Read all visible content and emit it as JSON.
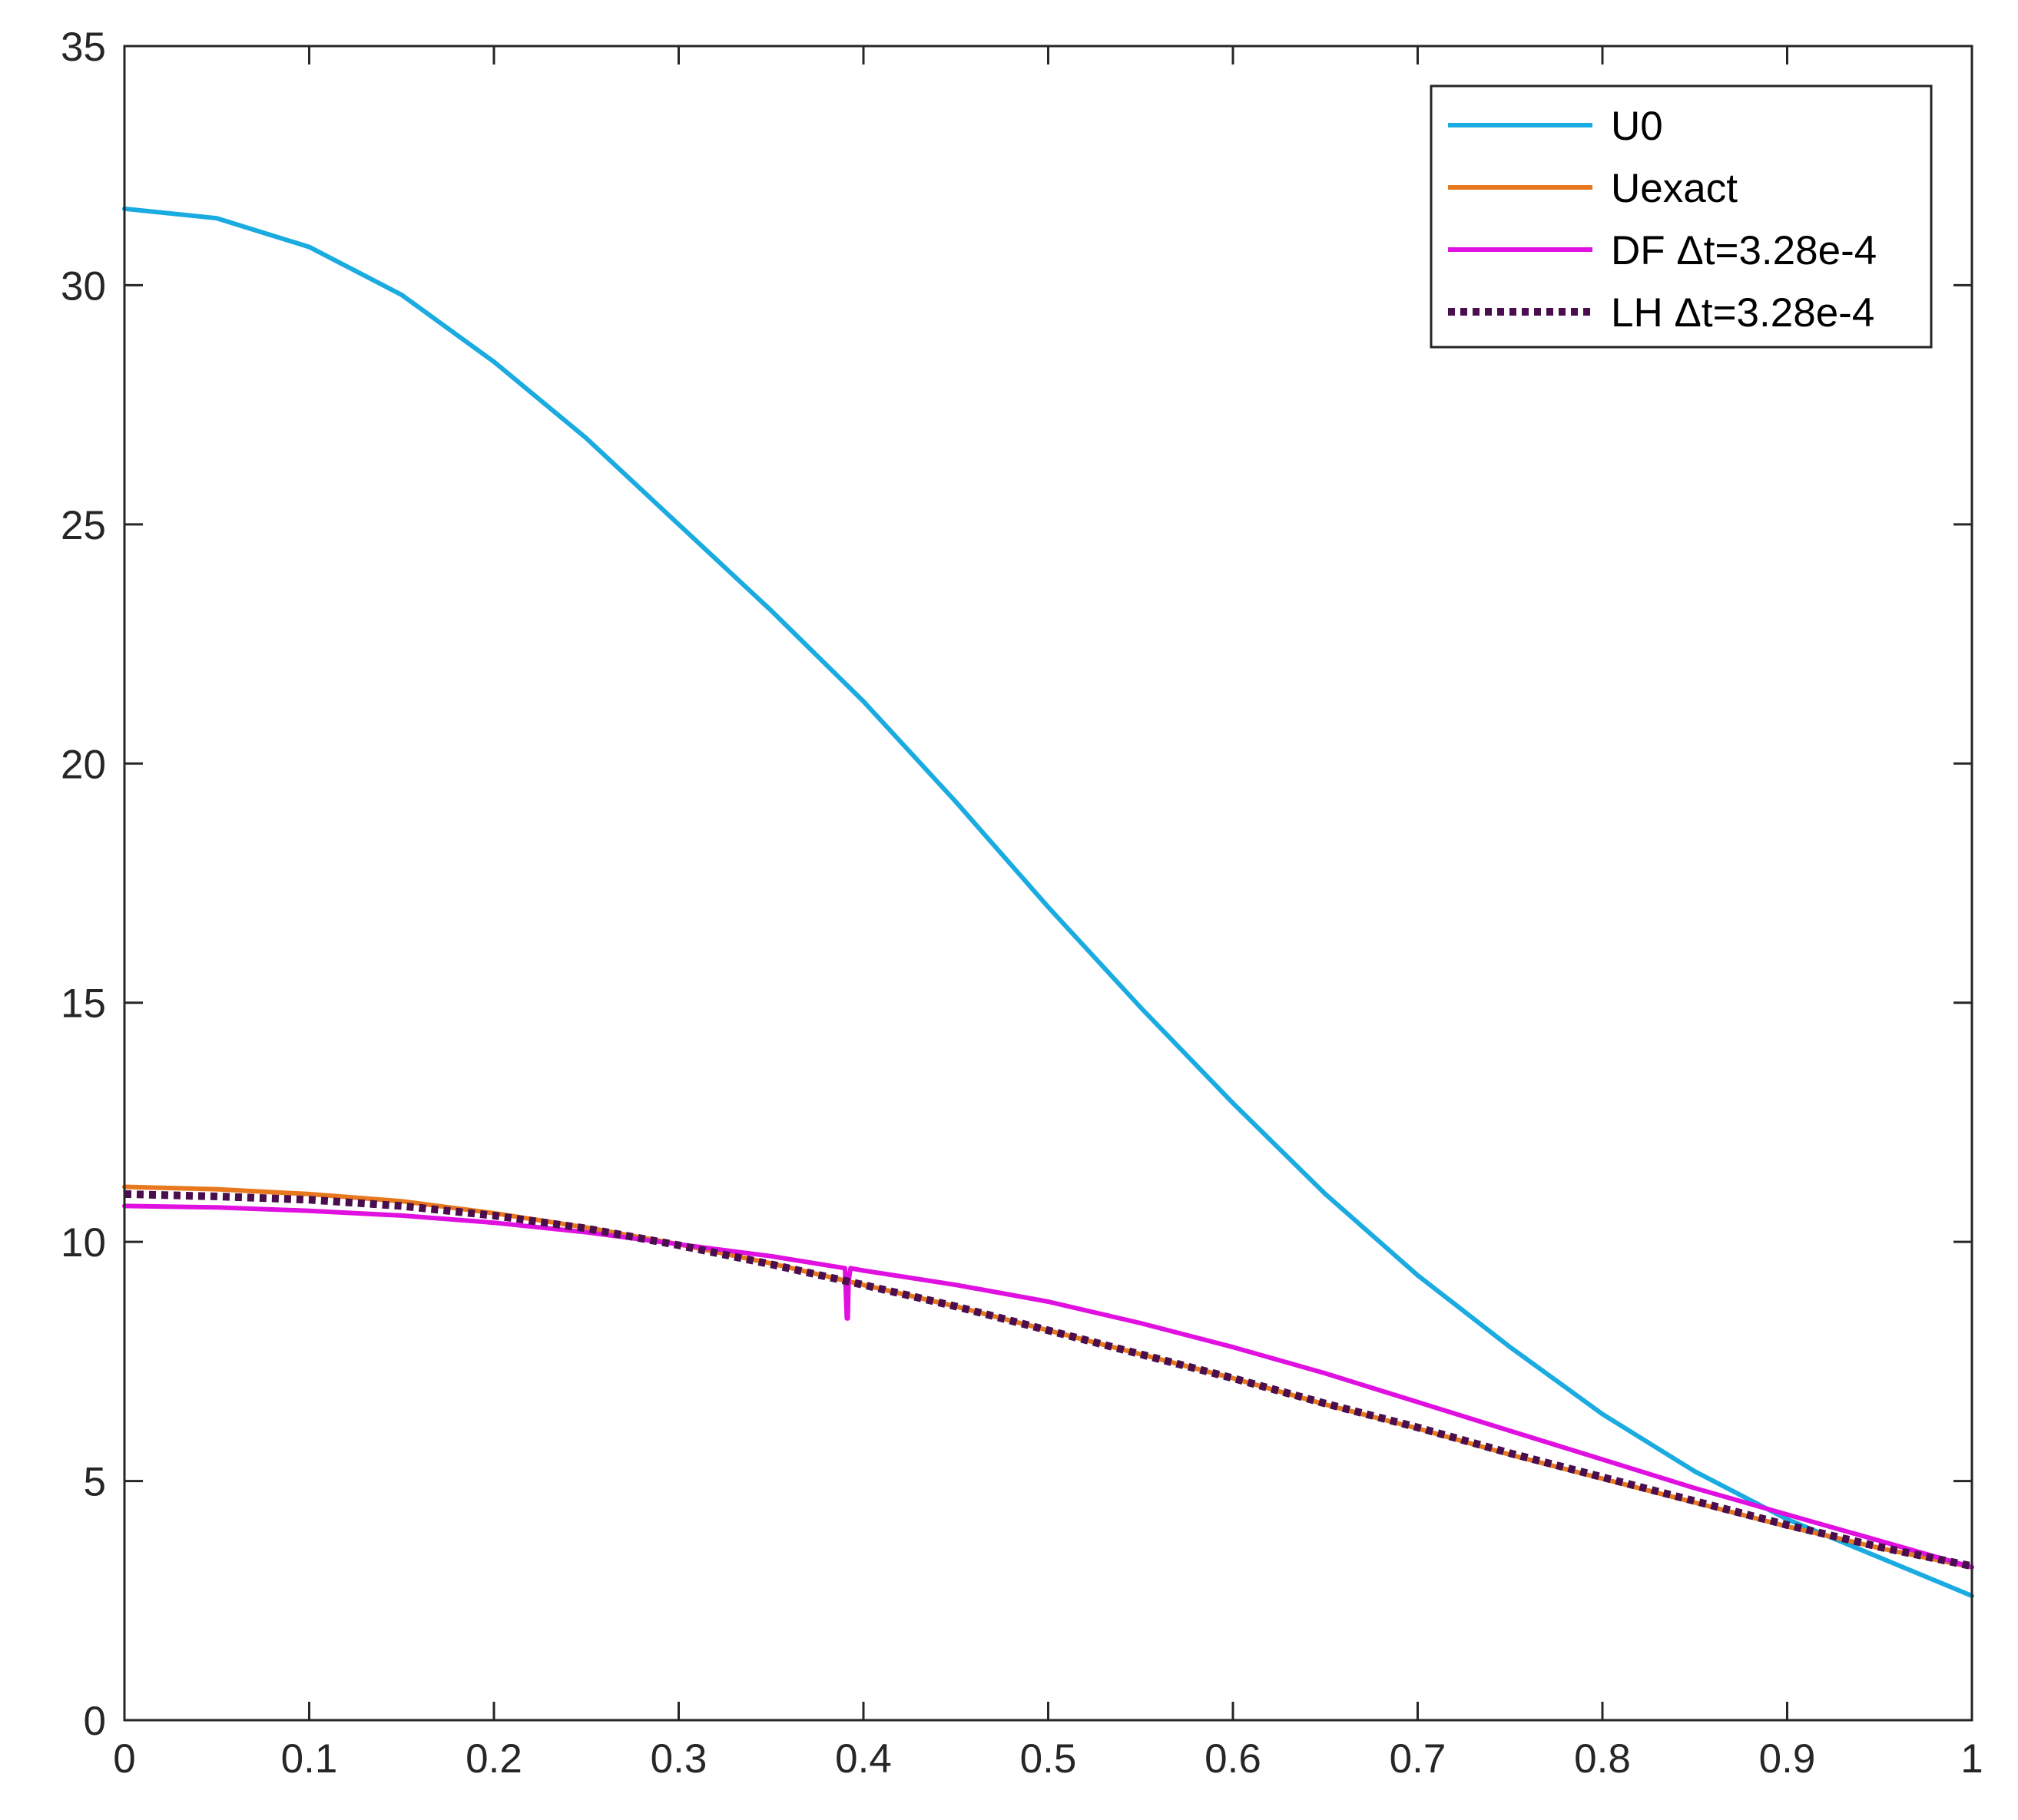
{
  "chart_data": {
    "type": "line",
    "title": "",
    "xlabel": "",
    "ylabel": "",
    "xlim": [
      0,
      1
    ],
    "ylim": [
      0,
      35
    ],
    "xticks": [
      0,
      0.1,
      0.2,
      0.3,
      0.4,
      0.5,
      0.6,
      0.7,
      0.8,
      0.9,
      1
    ],
    "yticks": [
      0,
      5,
      10,
      15,
      20,
      25,
      30,
      35
    ],
    "xtick_labels": [
      "0",
      "0.1",
      "0.2",
      "0.3",
      "0.4",
      "0.5",
      "0.6",
      "0.7",
      "0.8",
      "0.9",
      "1"
    ],
    "ytick_labels": [
      "0",
      "5",
      "10",
      "15",
      "20",
      "25",
      "30",
      "35"
    ],
    "grid": false,
    "legend_position": "top-right",
    "series": [
      {
        "name": "U0",
        "color": "#1AABE0",
        "style": "solid",
        "x": [
          0,
          0.05,
          0.1,
          0.15,
          0.2,
          0.25,
          0.3,
          0.35,
          0.4,
          0.45,
          0.5,
          0.55,
          0.6,
          0.65,
          0.7,
          0.75,
          0.8,
          0.85,
          0.9,
          0.95,
          1.0
        ],
        "y": [
          31.6,
          31.4,
          30.8,
          29.8,
          28.4,
          26.8,
          25.0,
          23.2,
          21.3,
          19.2,
          17.0,
          14.9,
          12.9,
          11.0,
          9.3,
          7.8,
          6.4,
          5.2,
          4.2,
          3.4,
          2.6
        ]
      },
      {
        "name": "Uexact",
        "color": "#E8781E",
        "style": "solid",
        "x": [
          0,
          0.05,
          0.1,
          0.15,
          0.2,
          0.25,
          0.3,
          0.35,
          0.4,
          0.45,
          0.5,
          0.55,
          0.6,
          0.65,
          0.7,
          0.75,
          0.8,
          0.85,
          0.9,
          0.95,
          1.0
        ],
        "y": [
          11.15,
          11.1,
          11.0,
          10.85,
          10.6,
          10.3,
          9.95,
          9.55,
          9.1,
          8.65,
          8.15,
          7.65,
          7.15,
          6.6,
          6.1,
          5.55,
          5.05,
          4.55,
          4.05,
          3.6,
          3.2
        ]
      },
      {
        "name": "DF Δt=3.28e-4",
        "color": "#E010E0",
        "style": "solid",
        "x": [
          0,
          0.05,
          0.1,
          0.15,
          0.2,
          0.25,
          0.3,
          0.35,
          0.39,
          0.391,
          0.3915,
          0.392,
          0.393,
          0.4,
          0.45,
          0.5,
          0.55,
          0.6,
          0.65,
          0.7,
          0.75,
          0.8,
          0.85,
          0.9,
          0.95,
          1.0
        ],
        "y": [
          10.75,
          10.72,
          10.65,
          10.55,
          10.4,
          10.2,
          9.95,
          9.7,
          9.45,
          8.4,
          8.4,
          9.2,
          9.45,
          9.4,
          9.1,
          8.75,
          8.3,
          7.8,
          7.25,
          6.65,
          6.05,
          5.45,
          4.85,
          4.3,
          3.75,
          3.2
        ]
      },
      {
        "name": "LH Δt=3.28e-4",
        "color": "#4A0E4E",
        "style": "dotted",
        "x": [
          0,
          0.05,
          0.1,
          0.15,
          0.2,
          0.25,
          0.3,
          0.35,
          0.4,
          0.45,
          0.5,
          0.55,
          0.6,
          0.65,
          0.7,
          0.75,
          0.8,
          0.85,
          0.9,
          0.95,
          1.0
        ],
        "y": [
          11.0,
          10.95,
          10.88,
          10.75,
          10.55,
          10.28,
          9.93,
          9.53,
          9.1,
          8.65,
          8.15,
          7.65,
          7.15,
          6.62,
          6.12,
          5.58,
          5.08,
          4.58,
          4.08,
          3.62,
          3.22
        ]
      }
    ]
  }
}
